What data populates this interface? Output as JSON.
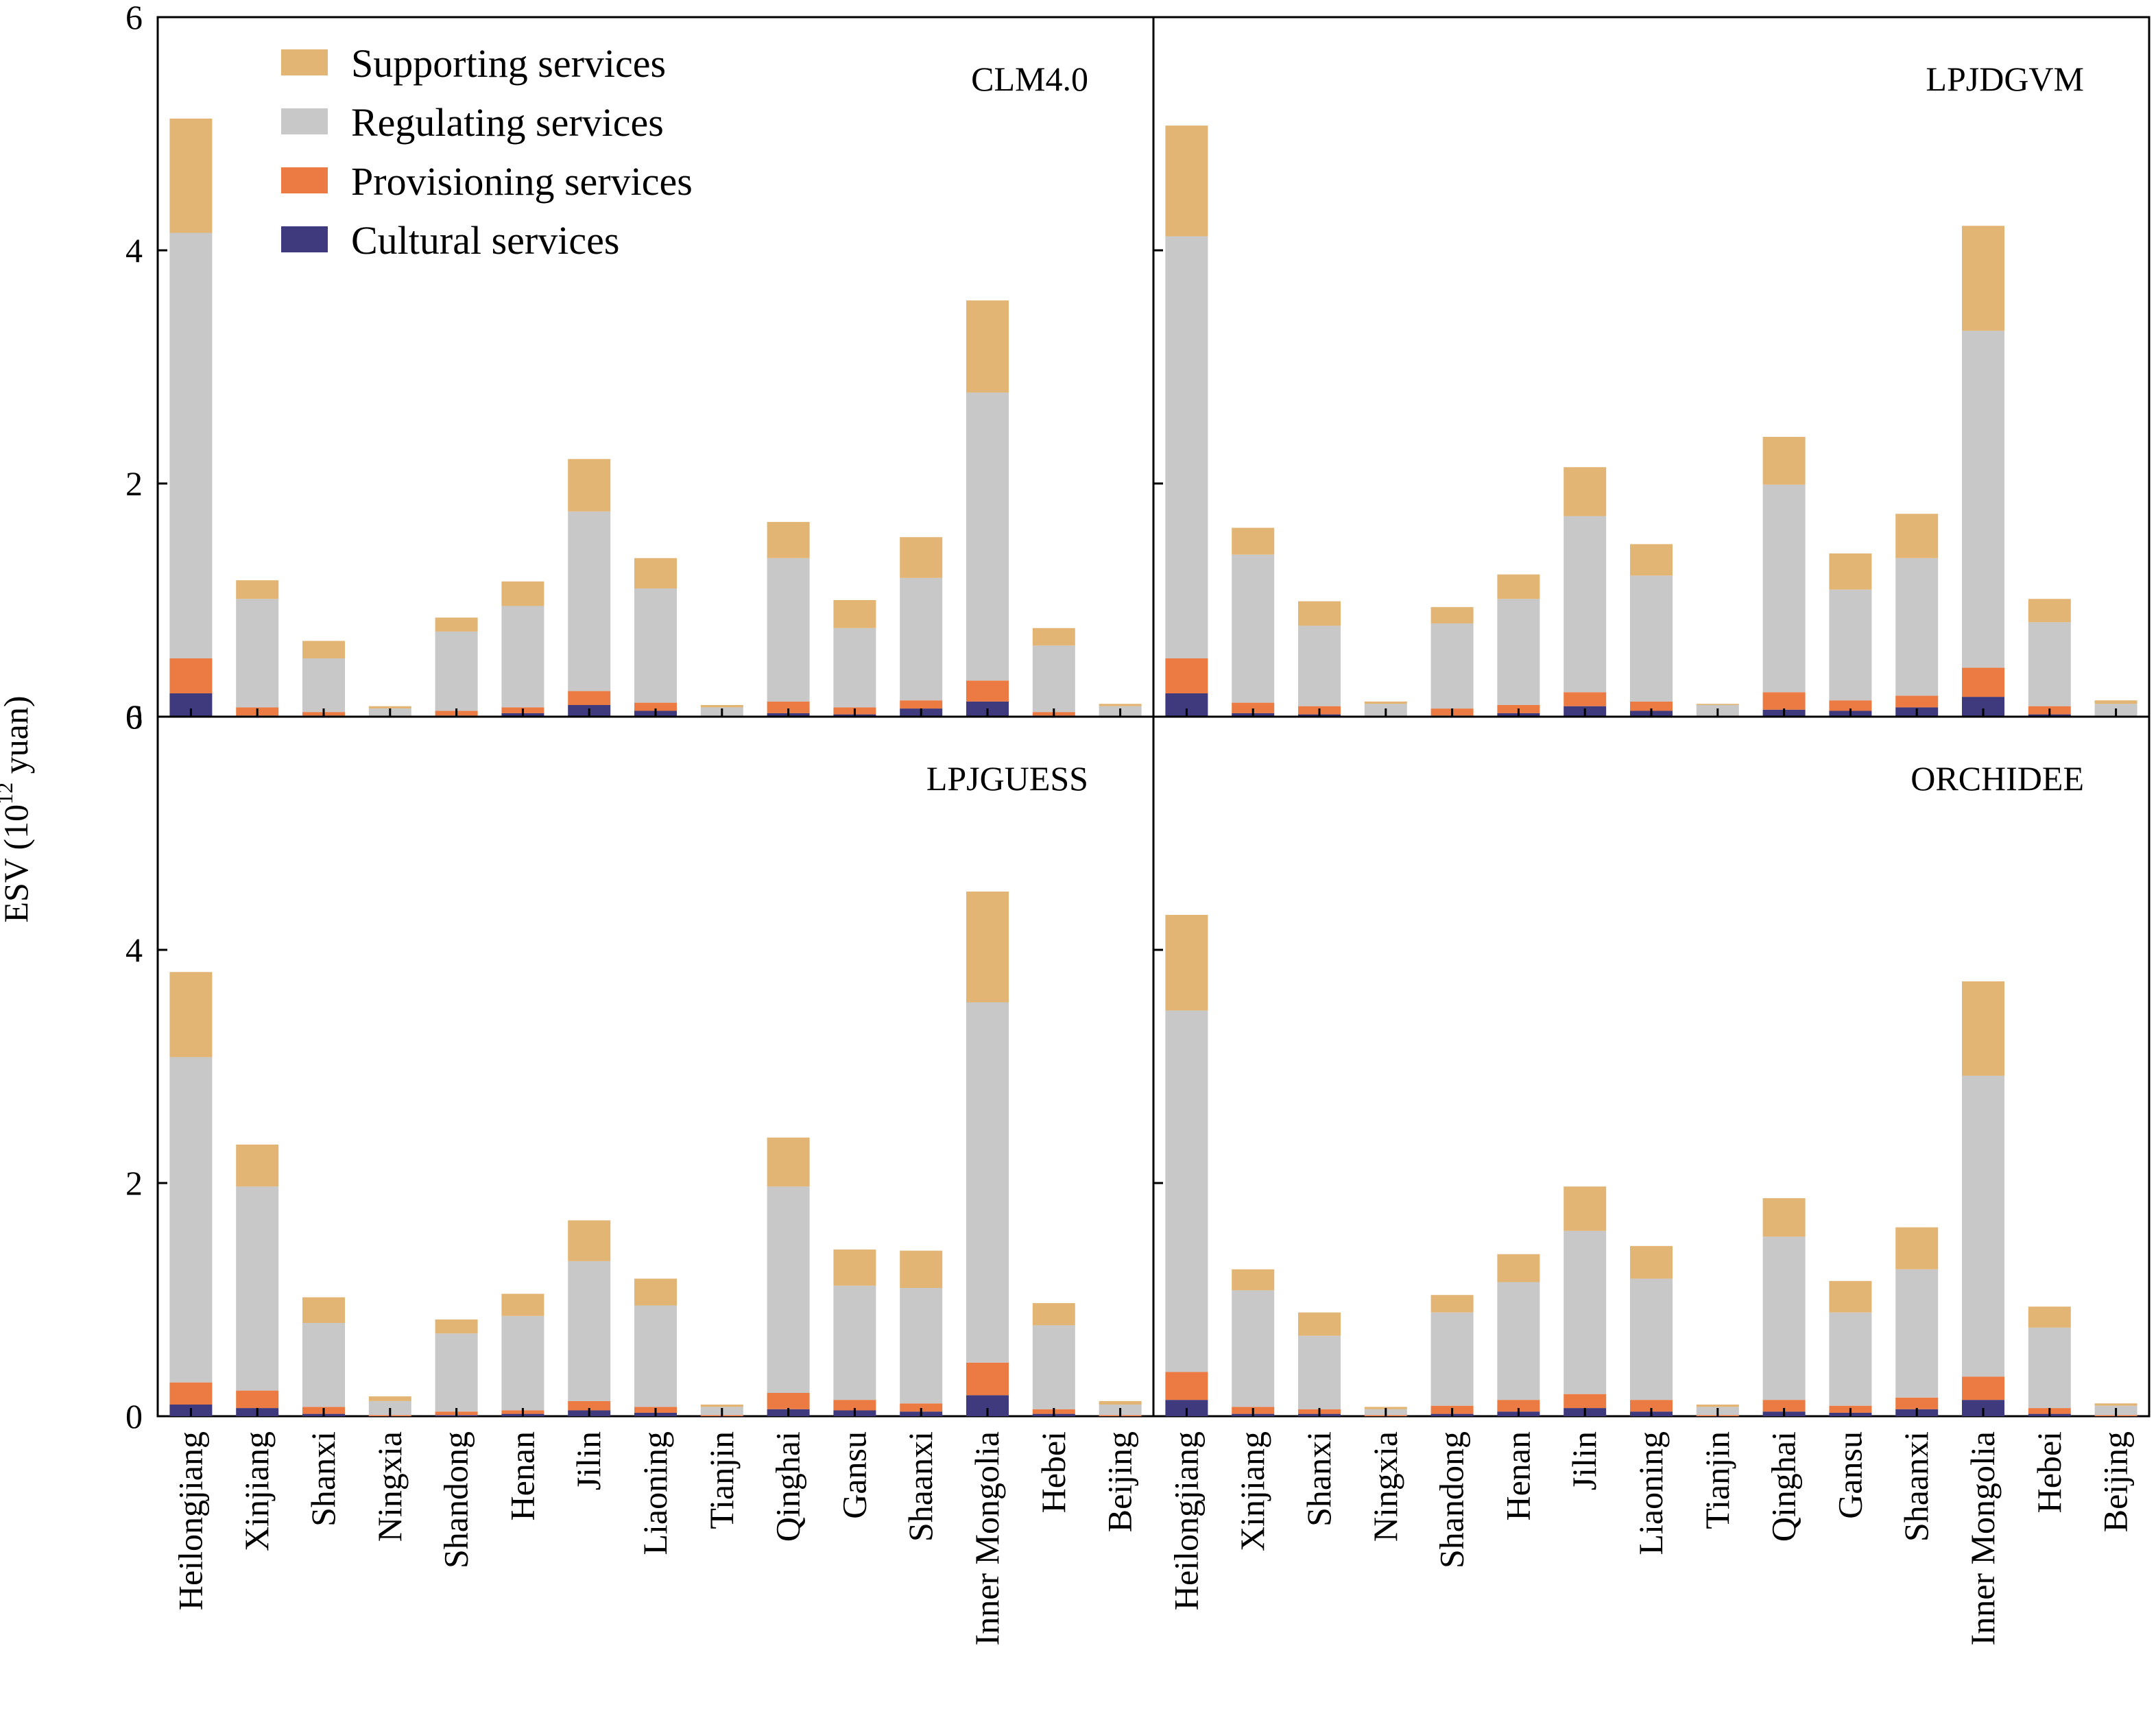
{
  "chart_data": {
    "type": "bar",
    "stacked": true,
    "ylabel_main": "ESV (10",
    "ylabel_sup": "12",
    "ylabel_tail": " yuan)",
    "ylim": [
      0,
      6
    ],
    "yticks": [
      "0",
      "2",
      "4",
      "6"
    ],
    "grid": false,
    "legend_placement": "top-left of first panel",
    "categories": [
      "Heilongjiang",
      "Xinjiang",
      "Shanxi",
      "Ningxia",
      "Shandong",
      "Henan",
      "Jilin",
      "Liaoning",
      "Tianjin",
      "Qinghai",
      "Gansu",
      "Shaanxi",
      "Inner Mongolia",
      "Hebei",
      "Beijing"
    ],
    "series_meta": [
      {
        "name": "Supporting services",
        "color": "#E2B574"
      },
      {
        "name": "Regulating services",
        "color": "#C8C8C8"
      },
      {
        "name": "Provisioning services",
        "color": "#EB7B43"
      },
      {
        "name": "Cultural services",
        "color": "#3E3A7D"
      }
    ],
    "panels": [
      {
        "title": "CLM4.0",
        "series": [
          {
            "name": "Cultural services",
            "values": [
              0.2,
              0.01,
              0.01,
              0.0,
              0.01,
              0.03,
              0.1,
              0.05,
              0.0,
              0.03,
              0.02,
              0.07,
              0.13,
              0.01,
              0.0
            ]
          },
          {
            "name": "Provisioning services",
            "values": [
              0.3,
              0.07,
              0.03,
              0.01,
              0.04,
              0.05,
              0.12,
              0.07,
              0.01,
              0.1,
              0.06,
              0.07,
              0.18,
              0.03,
              0.01
            ]
          },
          {
            "name": "Regulating services",
            "values": [
              3.65,
              0.93,
              0.46,
              0.06,
              0.68,
              0.87,
              1.54,
              0.98,
              0.07,
              1.23,
              0.68,
              1.05,
              2.47,
              0.57,
              0.08
            ]
          },
          {
            "name": "Supporting services",
            "values": [
              0.98,
              0.16,
              0.15,
              0.02,
              0.12,
              0.21,
              0.45,
              0.26,
              0.02,
              0.31,
              0.24,
              0.35,
              0.79,
              0.15,
              0.02
            ]
          }
        ]
      },
      {
        "title": "LPJDGVM",
        "series": [
          {
            "name": "Cultural services",
            "values": [
              0.2,
              0.03,
              0.02,
              0.0,
              0.01,
              0.03,
              0.09,
              0.05,
              0.0,
              0.06,
              0.05,
              0.08,
              0.17,
              0.02,
              0.0
            ]
          },
          {
            "name": "Provisioning services",
            "values": [
              0.3,
              0.09,
              0.07,
              0.01,
              0.06,
              0.07,
              0.12,
              0.08,
              0.01,
              0.15,
              0.09,
              0.1,
              0.25,
              0.07,
              0.01
            ]
          },
          {
            "name": "Regulating services",
            "values": [
              3.62,
              1.27,
              0.69,
              0.1,
              0.73,
              0.91,
              1.51,
              1.08,
              0.09,
              1.78,
              0.95,
              1.18,
              2.89,
              0.72,
              0.1
            ]
          },
          {
            "name": "Supporting services",
            "values": [
              0.95,
              0.23,
              0.21,
              0.02,
              0.14,
              0.21,
              0.42,
              0.27,
              0.01,
              0.41,
              0.31,
              0.38,
              0.9,
              0.2,
              0.03
            ]
          }
        ]
      },
      {
        "title": "LPJGUESS",
        "series": [
          {
            "name": "Cultural services",
            "values": [
              0.1,
              0.07,
              0.02,
              0.0,
              0.01,
              0.02,
              0.05,
              0.03,
              0.0,
              0.06,
              0.05,
              0.04,
              0.18,
              0.02,
              0.0
            ]
          },
          {
            "name": "Provisioning services",
            "values": [
              0.19,
              0.15,
              0.06,
              0.01,
              0.03,
              0.03,
              0.08,
              0.05,
              0.01,
              0.14,
              0.09,
              0.07,
              0.28,
              0.04,
              0.01
            ]
          },
          {
            "name": "Regulating services",
            "values": [
              2.79,
              1.75,
              0.72,
              0.12,
              0.67,
              0.81,
              1.2,
              0.87,
              0.07,
              1.77,
              0.98,
              0.99,
              3.09,
              0.72,
              0.09
            ]
          },
          {
            "name": "Supporting services",
            "values": [
              0.73,
              0.36,
              0.22,
              0.04,
              0.12,
              0.19,
              0.35,
              0.23,
              0.02,
              0.42,
              0.31,
              0.32,
              0.95,
              0.19,
              0.03
            ]
          }
        ]
      },
      {
        "title": "ORCHIDEE",
        "series": [
          {
            "name": "Cultural services",
            "values": [
              0.14,
              0.02,
              0.02,
              0.0,
              0.02,
              0.04,
              0.07,
              0.04,
              0.0,
              0.04,
              0.03,
              0.06,
              0.14,
              0.02,
              0.0
            ]
          },
          {
            "name": "Provisioning services",
            "values": [
              0.24,
              0.06,
              0.04,
              0.01,
              0.07,
              0.1,
              0.12,
              0.1,
              0.01,
              0.1,
              0.06,
              0.1,
              0.2,
              0.05,
              0.01
            ]
          },
          {
            "name": "Regulating services",
            "values": [
              3.1,
              1.0,
              0.63,
              0.05,
              0.8,
              1.01,
              1.4,
              1.04,
              0.07,
              1.4,
              0.8,
              1.1,
              2.58,
              0.69,
              0.08
            ]
          },
          {
            "name": "Supporting services",
            "values": [
              0.82,
              0.18,
              0.2,
              0.02,
              0.15,
              0.24,
              0.38,
              0.28,
              0.02,
              0.33,
              0.27,
              0.36,
              0.81,
              0.18,
              0.02
            ]
          }
        ]
      }
    ]
  }
}
